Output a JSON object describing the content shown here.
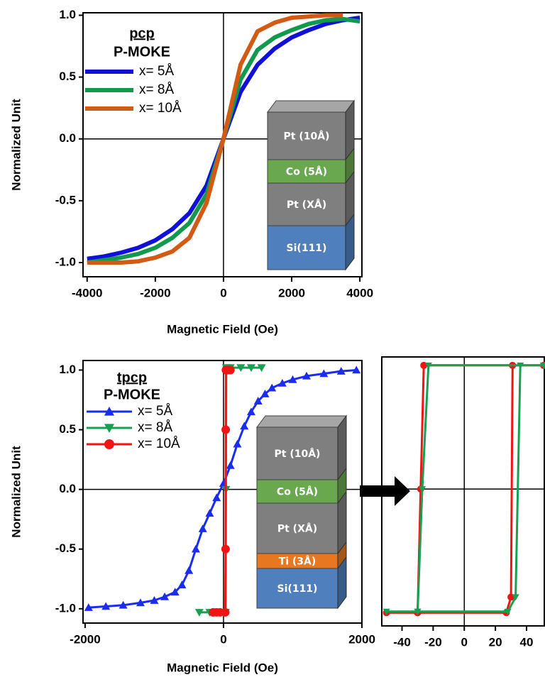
{
  "chart_data": [
    {
      "type": "line",
      "xlabel": "Magnetic Field (Oe)",
      "ylabel": "Normalized Unit",
      "legend_title": "pcp",
      "legend_subtitle": "P-MOKE",
      "zero_lines": true,
      "xlim": [
        -4120,
        4060
      ],
      "ylim": [
        -1.115,
        1.02
      ],
      "xticks": [
        -4000,
        -2000,
        0,
        2000,
        4000
      ],
      "yticks": [
        {
          "value": -1.0,
          "label": "-1.0"
        },
        {
          "value": -0.5,
          "label": "-0.5"
        },
        {
          "value": 0.0,
          "label": "0.0"
        },
        {
          "value": 0.5,
          "label": "0.5"
        },
        {
          "value": 1.0,
          "label": "1.0"
        }
      ],
      "x": [
        -4000,
        -3500,
        -3000,
        -2500,
        -2000,
        -1500,
        -1000,
        -500,
        0,
        500,
        1000,
        1500,
        2000,
        2500,
        3000,
        3500,
        4000
      ],
      "series": [
        {
          "name": "x= 5Å",
          "color": "#1010d8",
          "values": [
            -0.97,
            -0.95,
            -0.92,
            -0.88,
            -0.82,
            -0.73,
            -0.6,
            -0.38,
            0,
            0.38,
            0.6,
            0.73,
            0.82,
            0.88,
            0.93,
            0.96,
            0.98
          ]
        },
        {
          "name": "x= 8Å",
          "color": "#119a4e",
          "values": [
            -1.0,
            -0.98,
            -0.96,
            -0.93,
            -0.88,
            -0.8,
            -0.68,
            -0.45,
            0,
            0.48,
            0.72,
            0.82,
            0.88,
            0.93,
            0.96,
            0.97,
            0.95
          ]
        },
        {
          "name": "x= 10Å",
          "color": "#d25a14",
          "values": [
            -1.0,
            -1.0,
            -1.0,
            -0.99,
            -0.96,
            -0.91,
            -0.8,
            -0.52,
            0,
            0.6,
            0.87,
            0.94,
            0.98,
            0.99,
            1.0,
            1.0,
            null
          ]
        }
      ]
    },
    {
      "type": "line",
      "xlabel": "Magnetic Field (Oe)",
      "ylabel": "Normalized Unit",
      "legend_title": "tpcp",
      "legend_subtitle": "P-MOKE",
      "zero_lines": true,
      "xlim": [
        -2030,
        2000
      ],
      "ylim": [
        -1.12,
        1.08
      ],
      "xticks": [
        -2000,
        0,
        2000
      ],
      "yticks": [
        {
          "value": -1.0,
          "label": "-1.0"
        },
        {
          "value": -0.5,
          "label": "-0.5"
        },
        {
          "value": 0.0,
          "label": "0.0"
        },
        {
          "value": 0.5,
          "label": "0.5"
        },
        {
          "value": 1.0,
          "label": "1.0"
        }
      ],
      "series": [
        {
          "name": "x= 5Å",
          "color": "#1a2cf0",
          "marker": "triangle-up",
          "x": [
            -1950,
            -1700,
            -1450,
            -1200,
            -1000,
            -850,
            -700,
            -600,
            -500,
            -400,
            -300,
            -200,
            -100,
            0,
            100,
            200,
            300,
            400,
            500,
            600,
            700,
            850,
            1000,
            1200,
            1450,
            1700,
            1920
          ],
          "values": [
            -0.99,
            -0.98,
            -0.97,
            -0.95,
            -0.93,
            -0.9,
            -0.86,
            -0.8,
            -0.68,
            -0.5,
            -0.33,
            -0.2,
            -0.07,
            0.05,
            0.2,
            0.38,
            0.53,
            0.65,
            0.74,
            0.8,
            0.85,
            0.89,
            0.92,
            0.95,
            0.97,
            0.99,
            1.0
          ]
        },
        {
          "name": "x= 8Å",
          "color": "#16a050",
          "marker": "triangle-down",
          "x": [
            -350,
            -200,
            -50,
            30,
            35,
            40,
            100,
            250,
            400,
            550
          ],
          "values": [
            -1.03,
            -1.03,
            -1.03,
            -1.03,
            0,
            1.02,
            1.02,
            1.02,
            1.02,
            1.02
          ]
        },
        {
          "name": "x= 10Å",
          "color": "#f01414",
          "marker": "circle",
          "x": [
            -150,
            -100,
            -50,
            25,
            30,
            32,
            35,
            60,
            100
          ],
          "values": [
            -1.03,
            -1.03,
            -1.03,
            -1.03,
            -0.5,
            0.5,
            1.0,
            1.0,
            1.0
          ]
        }
      ]
    },
    {
      "type": "line",
      "zero_lines": true,
      "xlim": [
        -53,
        51.4
      ],
      "ylim": [
        -1.14,
        1.1
      ],
      "xticks": [
        -40,
        -20,
        0,
        20,
        40
      ],
      "series": [
        {
          "color": "#f01414",
          "marker": "circle",
          "x": [
            51,
            -26,
            -28,
            -30,
            -50,
            -30,
            27,
            30,
            31,
            51
          ],
          "values": [
            1.03,
            1.03,
            0,
            -1.03,
            -1.03,
            -1.03,
            -1.03,
            -0.9,
            1.03,
            1.03
          ]
        },
        {
          "color": "#16a050",
          "marker": "triangle-down",
          "x": [
            51,
            -23,
            -27,
            -30,
            -50,
            -30,
            28,
            33,
            36,
            51
          ],
          "values": [
            1.03,
            1.03,
            0,
            -1.02,
            -1.02,
            -1.02,
            -1.02,
            -0.9,
            1.03,
            1.03
          ]
        }
      ]
    }
  ],
  "insets": [
    {
      "layers": [
        {
          "label": "Pt (10Å)",
          "color": "#7f7f7f"
        },
        {
          "label": "Co (5Å)",
          "color": "#6aa84f"
        },
        {
          "label": "Pt (XÅ)",
          "color": "#7f7f7f"
        },
        {
          "label": "Si(111)",
          "color": "#4f7fbd"
        }
      ]
    },
    {
      "layers": [
        {
          "label": "Pt (10Å)",
          "color": "#7f7f7f"
        },
        {
          "label": "Co (5Å)",
          "color": "#6aa84f"
        },
        {
          "label": "Pt (XÅ)",
          "color": "#7f7f7f"
        },
        {
          "label": "Ti (3Å)",
          "color": "#e87722"
        },
        {
          "label": "Si(111)",
          "color": "#4f7fbd"
        }
      ]
    }
  ]
}
